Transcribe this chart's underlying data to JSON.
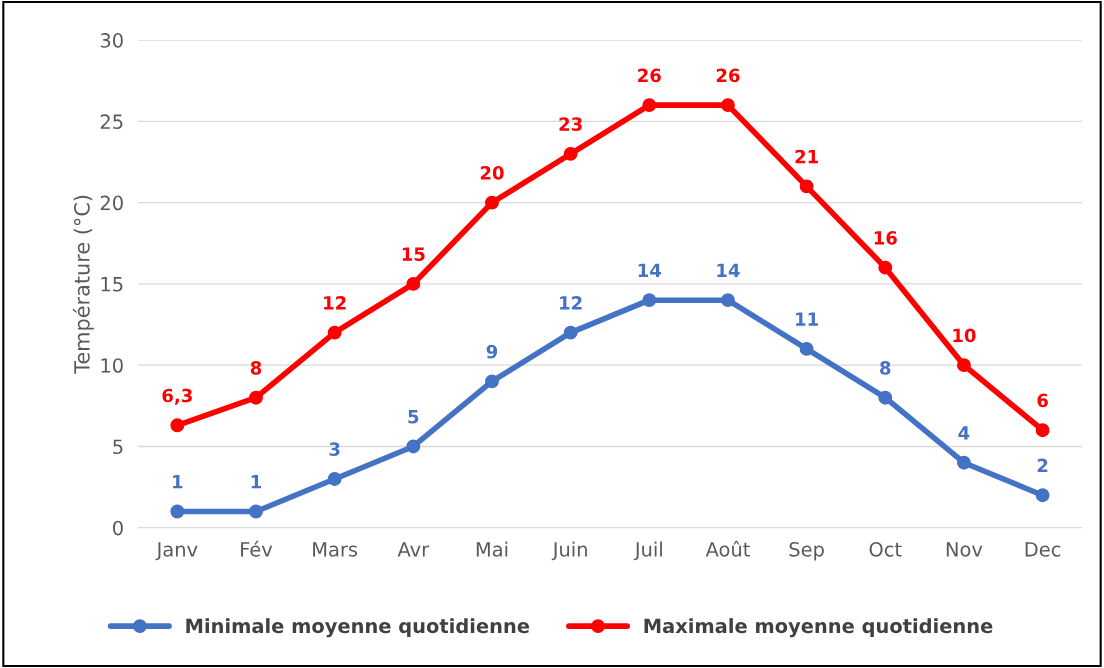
{
  "chart_data": {
    "type": "line",
    "ylabel": "Température (°C)",
    "categories": [
      "Janv",
      "Fév",
      "Mars",
      "Avr",
      "Mai",
      "Juin",
      "Juil",
      "Août",
      "Sep",
      "Oct",
      "Nov",
      "Dec"
    ],
    "series": [
      {
        "name": "Minimale moyenne quotidienne",
        "color": "#4472c4",
        "values": [
          1,
          1,
          3,
          5,
          9,
          12,
          14,
          14,
          11,
          8,
          4,
          2
        ],
        "value_labels": [
          "1",
          "1",
          "3",
          "5",
          "9",
          "12",
          "14",
          "14",
          "11",
          "8",
          "4",
          "2"
        ]
      },
      {
        "name": "Maximale moyenne quotidienne",
        "color": "#ff0000",
        "values": [
          6.3,
          8,
          12,
          15,
          20,
          23,
          26,
          26,
          21,
          16,
          10,
          6
        ],
        "value_labels": [
          "6,3",
          "8",
          "12",
          "15",
          "20",
          "23",
          "26",
          "26",
          "21",
          "16",
          "10",
          "6"
        ]
      }
    ],
    "ylim": [
      0,
      30
    ],
    "yticks": [
      0,
      5,
      10,
      15,
      20,
      25,
      30
    ],
    "grid": "y",
    "legend": "bottom",
    "marker": "circle",
    "line_style": "solid"
  }
}
